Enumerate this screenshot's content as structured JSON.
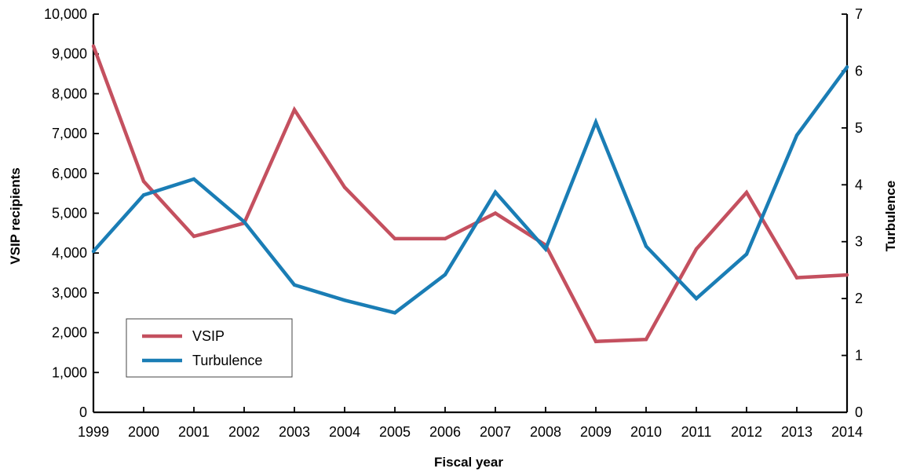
{
  "chart_data": {
    "type": "line",
    "title": "",
    "xlabel": "Fiscal year",
    "ylabel": "VSIP recipients",
    "y2label": "Turbulence",
    "categories": [
      "1999",
      "2000",
      "2001",
      "2002",
      "2003",
      "2004",
      "2005",
      "2006",
      "2007",
      "2008",
      "2009",
      "2010",
      "2011",
      "2012",
      "2013",
      "2014"
    ],
    "ylim": [
      0,
      10000
    ],
    "y_ticks": [
      "0",
      "1,000",
      "2,000",
      "3,000",
      "4,000",
      "5,000",
      "6,000",
      "7,000",
      "8,000",
      "9,000",
      "10,000"
    ],
    "y2lim": [
      0,
      7
    ],
    "y2_ticks": [
      "0",
      "1",
      "2",
      "3",
      "4",
      "5",
      "6",
      "7"
    ],
    "grid": false,
    "legend_position": "bottom-left",
    "series": [
      {
        "name": "VSIP",
        "axis": "left",
        "color": "#c4505f",
        "values": [
          9200,
          5800,
          4420,
          4750,
          7600,
          5650,
          4360,
          4360,
          5000,
          4200,
          1780,
          1830,
          4100,
          5520,
          3380,
          3450
        ]
      },
      {
        "name": "Turbulence",
        "axis": "right",
        "color": "#1a7db5",
        "values": [
          2.83,
          3.82,
          4.1,
          3.35,
          2.24,
          1.97,
          1.75,
          2.42,
          3.87,
          2.87,
          5.1,
          2.92,
          2.0,
          2.78,
          4.87,
          6.07
        ]
      }
    ]
  }
}
